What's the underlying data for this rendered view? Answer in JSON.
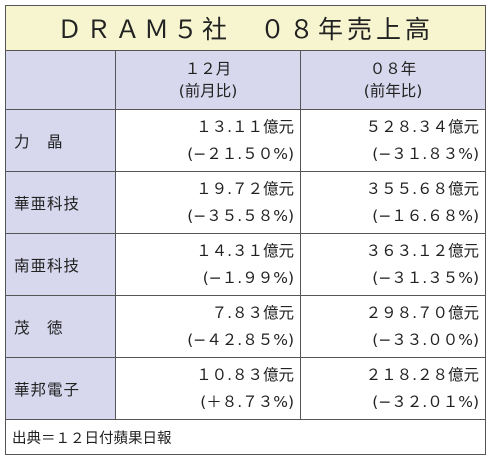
{
  "title": "ＤＲＡＭ５社　０８年売上高",
  "columns": [
    {
      "label": "１２月",
      "sub": "(前月比)"
    },
    {
      "label": "０８年",
      "sub": "(前年比)"
    }
  ],
  "rows": [
    {
      "company": "力　晶",
      "dec": "１３.１１億元",
      "dec_change": "(−２１.５０%)",
      "y08": "５２８.３４億元",
      "y08_change": "(−３１.８３%)"
    },
    {
      "company": "華亜科技",
      "dec": "１９.７２億元",
      "dec_change": "(−３５.５８%)",
      "y08": "３５５.６８億元",
      "y08_change": "(−１６.６８%)"
    },
    {
      "company": "南亜科技",
      "dec": "１４.３１億元",
      "dec_change": "(−１.９９%)",
      "y08": "３６３.１２億元",
      "y08_change": "(−３１.３５%)"
    },
    {
      "company": "茂　徳",
      "dec": "７.８３億元",
      "dec_change": "(−４２.８５%)",
      "y08": "２９８.７０億元",
      "y08_change": "(−３３.００%)"
    },
    {
      "company": "華邦電子",
      "dec": "１０.８３億元",
      "dec_change": "(＋８.７３%)",
      "y08": "２１８.２８億元",
      "y08_change": "(−３２.０１%)"
    }
  ],
  "footer": "出典＝１２日付蘋果日報",
  "colors": {
    "title_bg": "#f7f5cf",
    "header_bg": "#d7d7ed",
    "border": "#555555"
  }
}
